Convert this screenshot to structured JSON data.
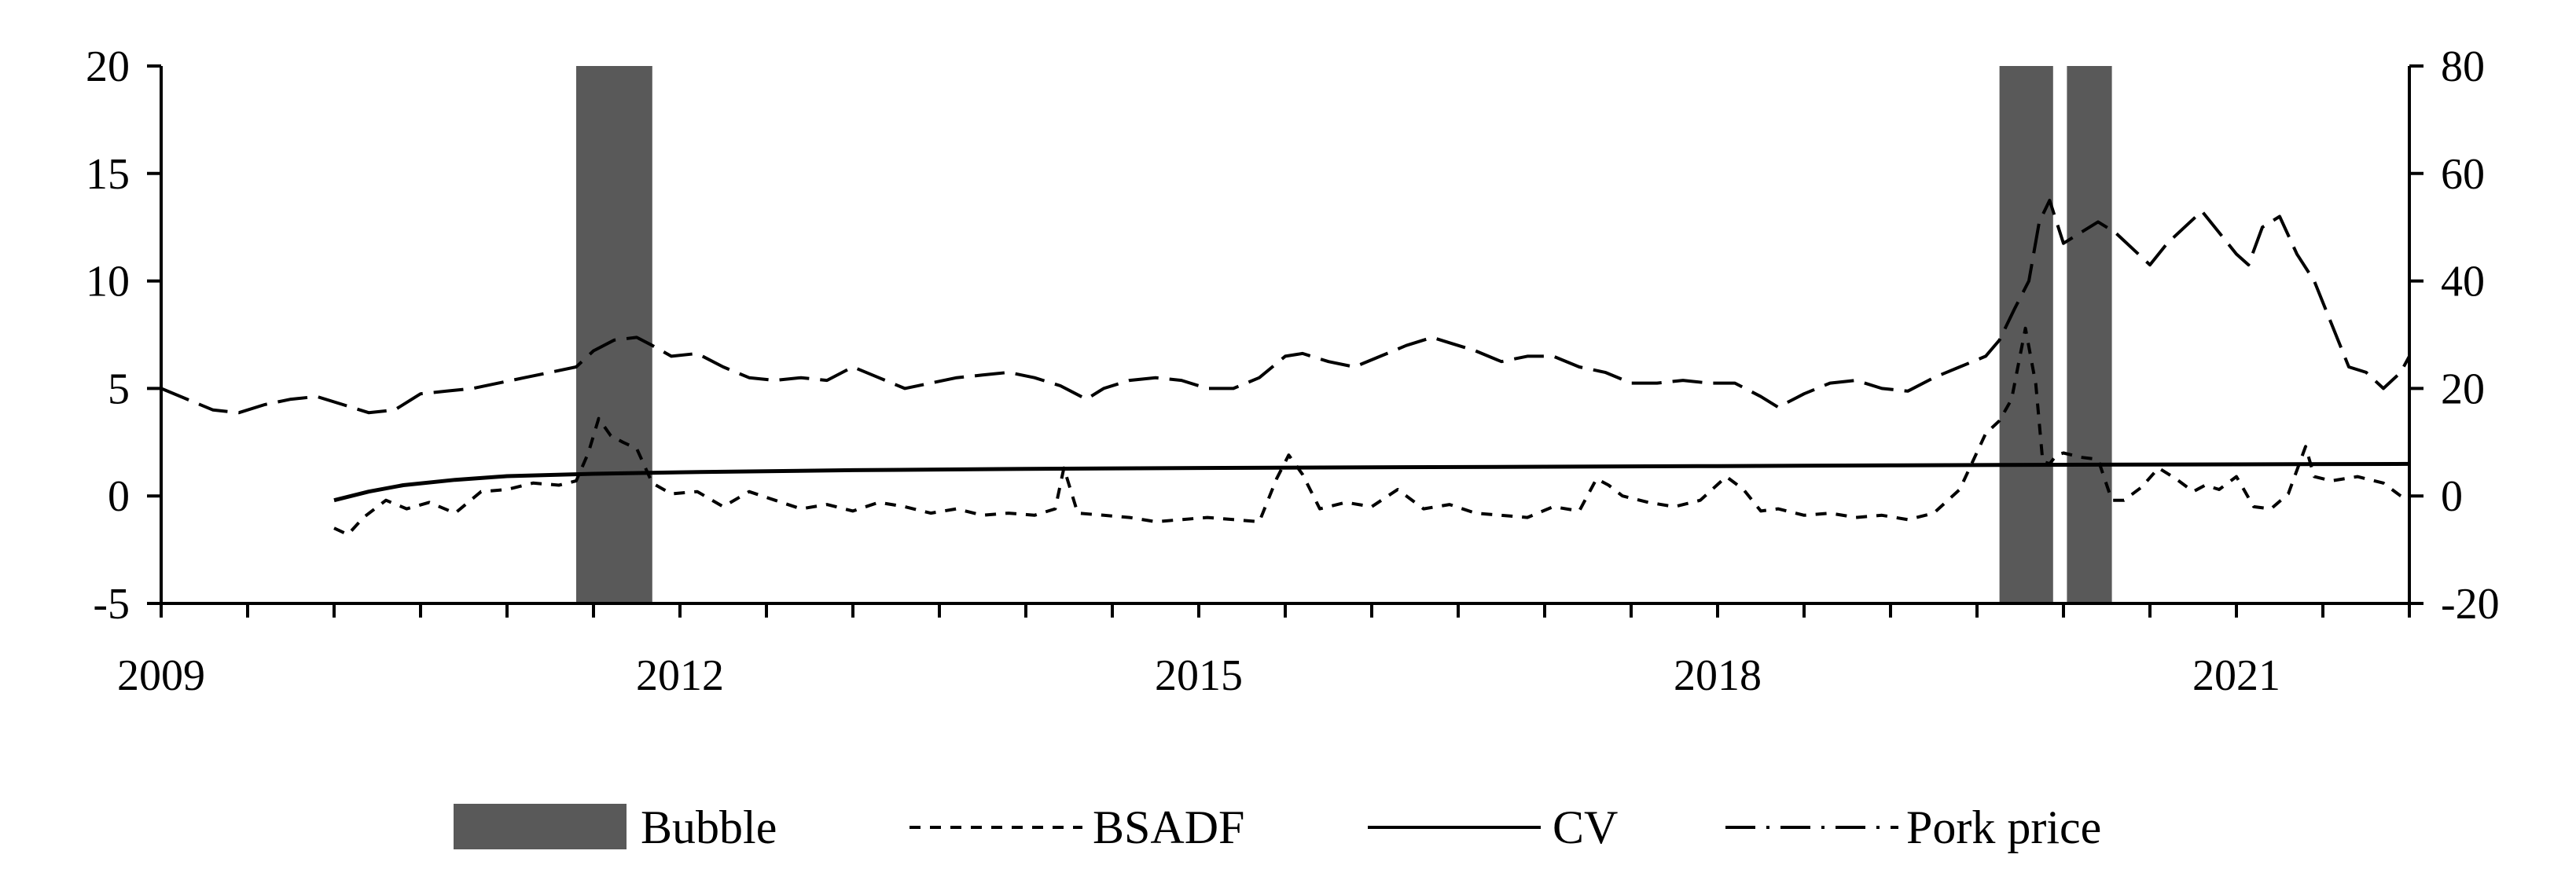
{
  "chart_data": {
    "type": "line",
    "title": "",
    "xlabel": "",
    "ylabel_left": "",
    "ylabel_right": "",
    "x_range": [
      2009.0,
      2022.0
    ],
    "ylim_left": [
      -5,
      20
    ],
    "ylim_right": [
      -20,
      80
    ],
    "x_tick_labels": [
      "2009",
      "2012",
      "2015",
      "2018",
      "2021"
    ],
    "y_left_tick_labels": [
      "20",
      "15",
      "10",
      "5",
      "0",
      "-5"
    ],
    "y_right_tick_labels": [
      "80",
      "60",
      "40",
      "20",
      "0",
      "-20"
    ],
    "grid": false,
    "legend": {
      "position": "bottom",
      "entries": [
        {
          "label": "Bubble",
          "style": "bar",
          "color": "#595959"
        },
        {
          "label": "BSADF",
          "style": "short-dash",
          "color": "#000000"
        },
        {
          "label": "CV",
          "style": "solid",
          "color": "#000000"
        },
        {
          "label": "Pork price",
          "style": "long-dash-dot",
          "color": "#000000"
        }
      ]
    },
    "bubble_periods": [
      {
        "start": 2011.4,
        "end": 2011.84
      },
      {
        "start": 2019.63,
        "end": 2019.94
      },
      {
        "start": 2020.02,
        "end": 2020.28
      }
    ],
    "series": [
      {
        "name": "BSADF",
        "axis": "left",
        "x": [
          2010.0,
          2010.08,
          2010.17,
          2010.3,
          2010.42,
          2010.55,
          2010.7,
          2010.85,
          2011.0,
          2011.15,
          2011.3,
          2011.4,
          2011.47,
          2011.53,
          2011.6,
          2011.67,
          2011.75,
          2011.84,
          2011.95,
          2012.1,
          2012.25,
          2012.4,
          2012.55,
          2012.7,
          2012.85,
          2013.0,
          2013.15,
          2013.3,
          2013.45,
          2013.6,
          2013.75,
          2013.9,
          2014.05,
          2014.17,
          2014.22,
          2014.3,
          2014.45,
          2014.6,
          2014.75,
          2014.9,
          2015.05,
          2015.2,
          2015.35,
          2015.45,
          2015.52,
          2015.6,
          2015.7,
          2015.85,
          2016.0,
          2016.15,
          2016.3,
          2016.45,
          2016.6,
          2016.75,
          2016.9,
          2017.05,
          2017.2,
          2017.3,
          2017.37,
          2017.45,
          2017.6,
          2017.75,
          2017.9,
          2018.05,
          2018.15,
          2018.25,
          2018.35,
          2018.5,
          2018.65,
          2018.8,
          2018.95,
          2019.1,
          2019.25,
          2019.4,
          2019.55,
          2019.63,
          2019.7,
          2019.78,
          2019.84,
          2019.88,
          2019.92,
          2019.96,
          2020.0,
          2020.1,
          2020.2,
          2020.28,
          2020.35,
          2020.45,
          2020.55,
          2020.65,
          2020.75,
          2020.82,
          2020.9,
          2021.0,
          2021.1,
          2021.2,
          2021.3,
          2021.4,
          2021.45,
          2021.55,
          2021.7,
          2021.85,
          2021.95,
          2022.0
        ],
        "y": [
          -1.5,
          -1.8,
          -1.0,
          -0.2,
          -0.6,
          -0.3,
          -0.8,
          0.2,
          0.3,
          0.6,
          0.5,
          0.7,
          2.0,
          3.6,
          2.8,
          2.5,
          2.2,
          0.6,
          0.1,
          0.2,
          -0.5,
          0.2,
          -0.2,
          -0.6,
          -0.4,
          -0.7,
          -0.3,
          -0.5,
          -0.8,
          -0.6,
          -0.9,
          -0.8,
          -0.9,
          -0.6,
          1.3,
          -0.8,
          -0.9,
          -1.0,
          -1.2,
          -1.1,
          -1.0,
          -1.1,
          -1.2,
          0.8,
          1.9,
          1.0,
          -0.6,
          -0.3,
          -0.5,
          0.3,
          -0.6,
          -0.4,
          -0.8,
          -0.9,
          -1.0,
          -0.5,
          -0.7,
          0.8,
          0.5,
          0.0,
          -0.3,
          -0.5,
          -0.2,
          0.9,
          0.3,
          -0.7,
          -0.6,
          -0.9,
          -0.8,
          -1.0,
          -0.9,
          -1.1,
          -0.8,
          0.3,
          2.9,
          3.5,
          4.5,
          7.8,
          5.2,
          1.6,
          1.5,
          1.9,
          2.0,
          1.8,
          1.7,
          -0.2,
          -0.2,
          0.4,
          1.3,
          0.8,
          0.2,
          0.5,
          0.3,
          0.9,
          -0.5,
          -0.6,
          0.1,
          2.3,
          0.9,
          0.7,
          0.9,
          0.6,
          0.0,
          -0.2
        ]
      },
      {
        "name": "CV",
        "axis": "left",
        "x": [
          2010.0,
          2010.2,
          2010.4,
          2010.7,
          2011.0,
          2011.5,
          2012.0,
          2013.0,
          2014.0,
          2015.0,
          2016.0,
          2017.0,
          2018.0,
          2019.0,
          2020.0,
          2021.0,
          2022.0
        ],
        "y": [
          -0.2,
          0.2,
          0.5,
          0.75,
          0.92,
          1.03,
          1.1,
          1.2,
          1.26,
          1.3,
          1.33,
          1.36,
          1.39,
          1.42,
          1.45,
          1.47,
          1.49
        ]
      },
      {
        "name": "Pork price",
        "axis": "right",
        "x": [
          2009.0,
          2009.15,
          2009.3,
          2009.45,
          2009.6,
          2009.75,
          2009.9,
          2010.05,
          2010.2,
          2010.35,
          2010.5,
          2010.65,
          2010.8,
          2010.95,
          2011.1,
          2011.25,
          2011.4,
          2011.5,
          2011.62,
          2011.75,
          2011.84,
          2011.95,
          2012.1,
          2012.25,
          2012.4,
          2012.55,
          2012.7,
          2012.85,
          2013.0,
          2013.15,
          2013.3,
          2013.45,
          2013.6,
          2013.75,
          2013.9,
          2014.05,
          2014.2,
          2014.35,
          2014.45,
          2014.6,
          2014.75,
          2014.9,
          2015.05,
          2015.2,
          2015.35,
          2015.5,
          2015.6,
          2015.75,
          2015.9,
          2016.05,
          2016.2,
          2016.35,
          2016.45,
          2016.6,
          2016.75,
          2016.9,
          2017.05,
          2017.2,
          2017.35,
          2017.5,
          2017.65,
          2017.8,
          2017.95,
          2018.1,
          2018.25,
          2018.35,
          2018.5,
          2018.65,
          2018.8,
          2018.95,
          2019.1,
          2019.25,
          2019.4,
          2019.55,
          2019.63,
          2019.72,
          2019.8,
          2019.86,
          2019.92,
          2020.0,
          2020.1,
          2020.2,
          2020.3,
          2020.4,
          2020.5,
          2020.6,
          2020.7,
          2020.8,
          2020.9,
          2021.0,
          2021.07,
          2021.15,
          2021.25,
          2021.35,
          2021.45,
          2021.55,
          2021.65,
          2021.75,
          2021.85,
          2021.95,
          2022.0
        ],
        "y": [
          20,
          18,
          16,
          15.5,
          17,
          18,
          18.5,
          17,
          15.5,
          16,
          19,
          19.5,
          20,
          21,
          22,
          23,
          24,
          27,
          29,
          29.5,
          28,
          26,
          26.5,
          24,
          22,
          21.5,
          22,
          21.5,
          24,
          22,
          20,
          21,
          22,
          22.5,
          23,
          22,
          20.5,
          18,
          20,
          21.5,
          22,
          21.5,
          20,
          20,
          22,
          26,
          26.5,
          25,
          24,
          26,
          28,
          29.5,
          28.5,
          27,
          25,
          26,
          26,
          24,
          23,
          21,
          21,
          21.5,
          21,
          21,
          18.5,
          16.5,
          19,
          21,
          21.5,
          20,
          19.5,
          22,
          24,
          26,
          29,
          35,
          40,
          51,
          55,
          47,
          49,
          51,
          49,
          46,
          43,
          47,
          50,
          53,
          49,
          45,
          43,
          50,
          52,
          45,
          40,
          32,
          24,
          23,
          20,
          23,
          26
        ]
      }
    ]
  }
}
